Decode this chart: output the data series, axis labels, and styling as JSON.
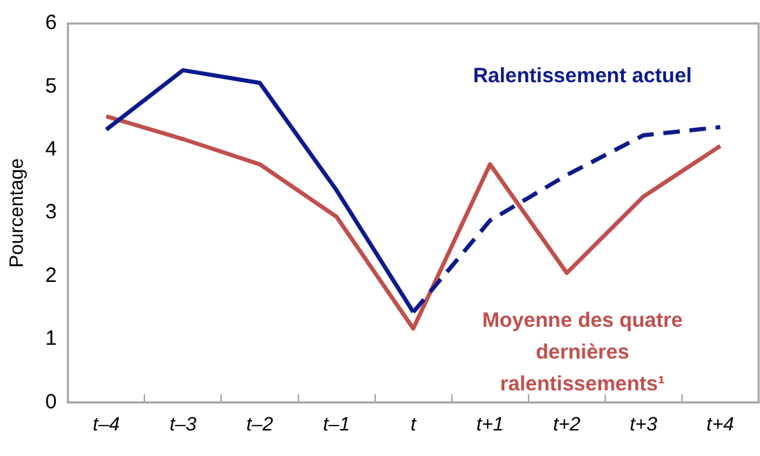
{
  "chart_data": {
    "type": "line",
    "ylabel": "Pourcentage",
    "categories": [
      "t–4",
      "t–3",
      "t–2",
      "t–1",
      "t",
      "t+1",
      "t+2",
      "t+3",
      "t+4"
    ],
    "series": [
      {
        "name": "Ralentissement actuel",
        "color": "#0d1a8c",
        "line_style": "solid",
        "values": [
          4.32,
          5.26,
          5.06,
          3.36,
          1.43,
          null,
          null,
          null,
          null
        ]
      },
      {
        "color": "#0d1a8c",
        "line_style": "dashed",
        "values": [
          null,
          null,
          null,
          null,
          1.43,
          2.88,
          3.6,
          4.23,
          4.36
        ]
      },
      {
        "name": "Moyenne des quatre dernières ralentissements¹",
        "color": "#c0504d",
        "line_style": "solid",
        "values": [
          4.53,
          4.17,
          3.77,
          2.94,
          1.17,
          3.77,
          2.05,
          3.26,
          4.06
        ]
      }
    ],
    "ylim": [
      0,
      6
    ],
    "yticks": [
      0,
      1,
      2,
      3,
      4,
      5,
      6
    ],
    "grid": false,
    "legend": false,
    "marker": "none"
  }
}
